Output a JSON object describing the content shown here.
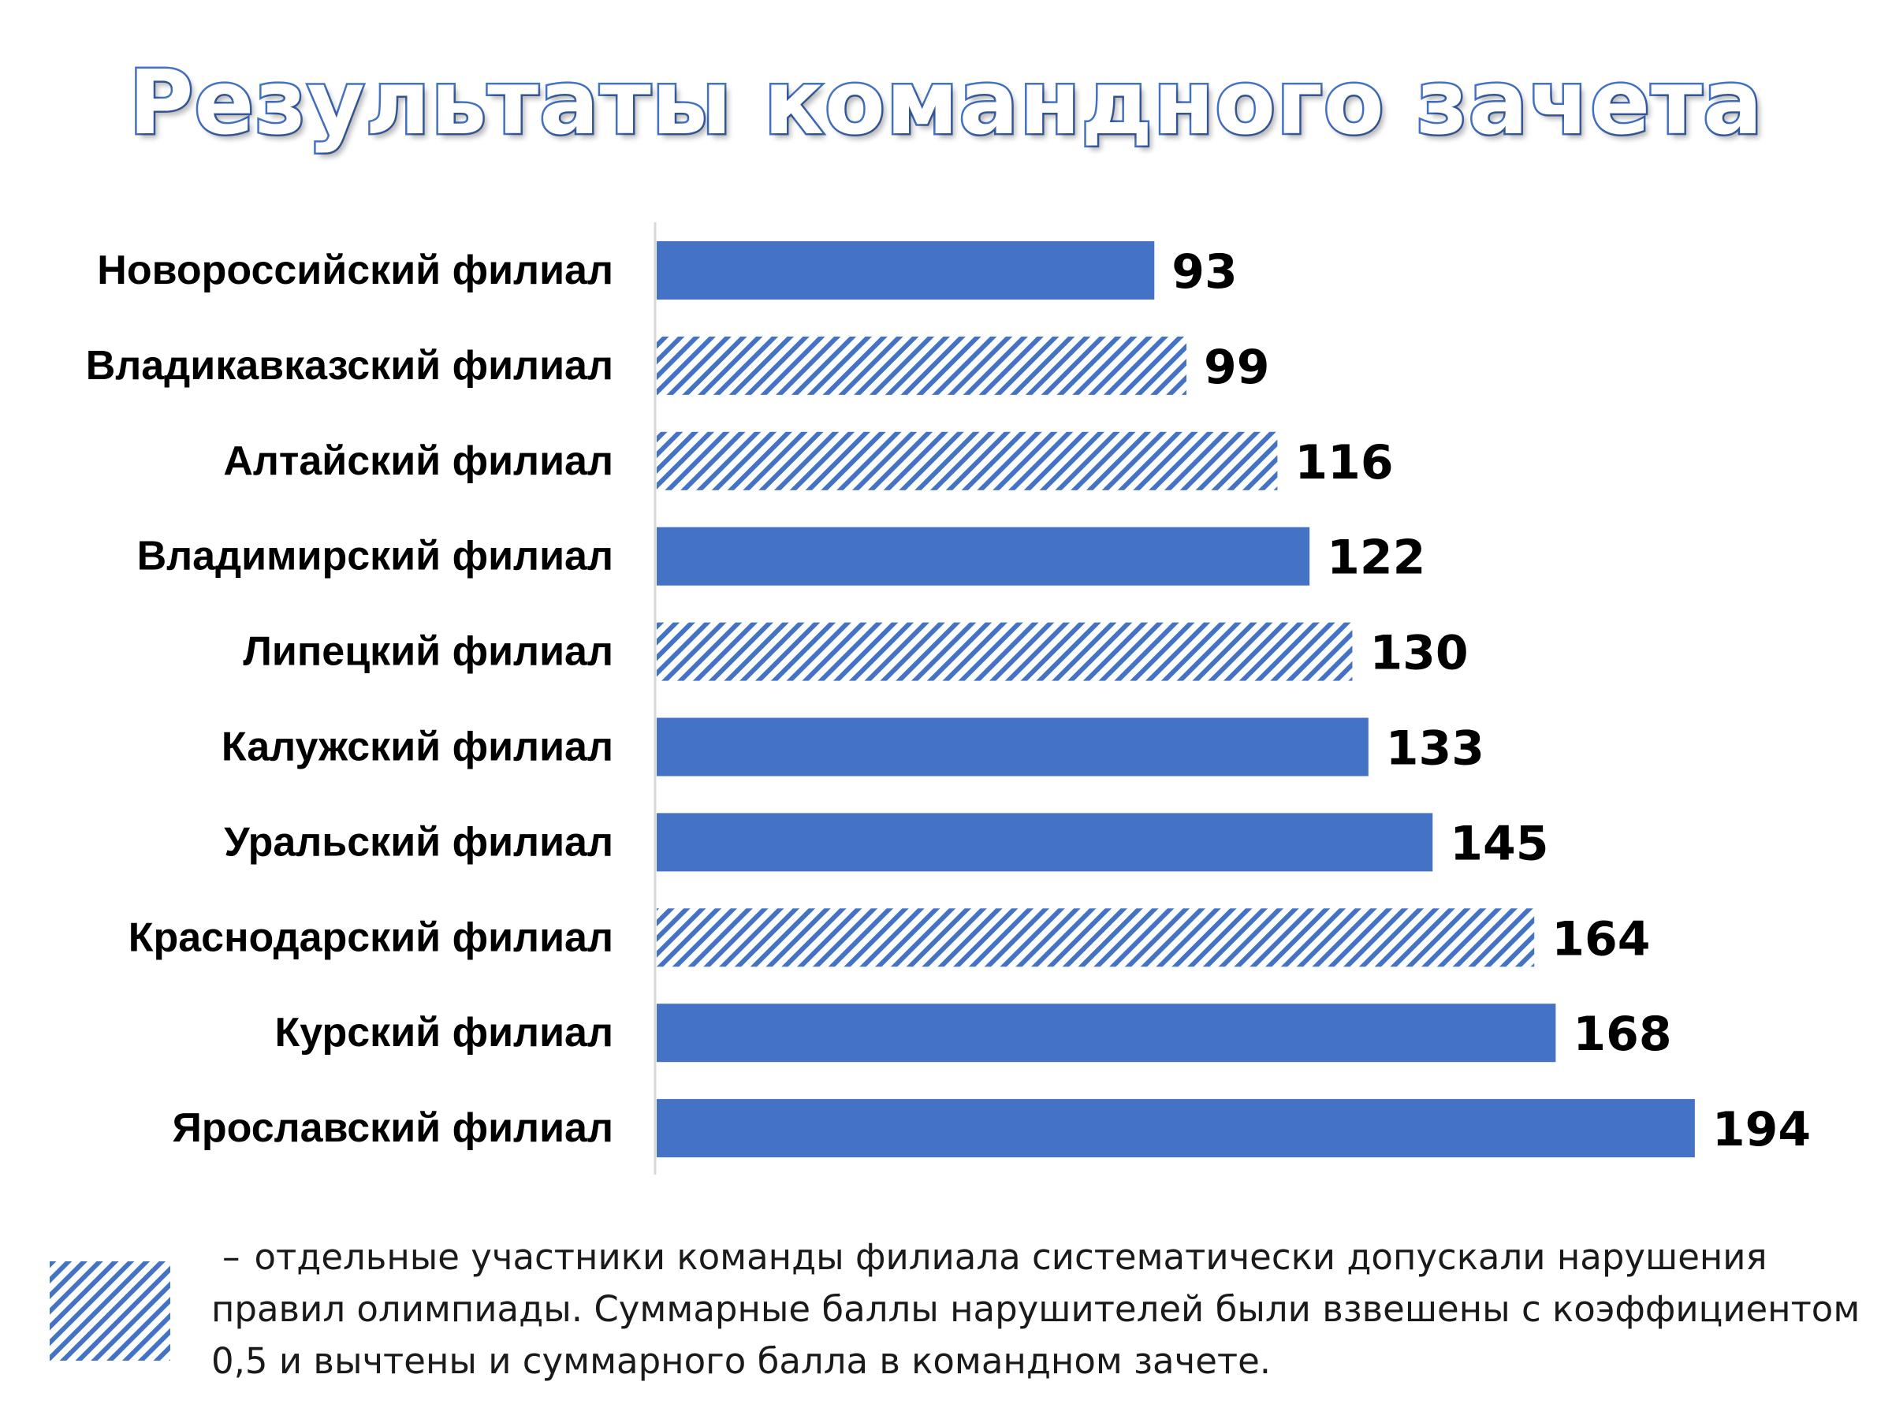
{
  "title": "Результаты командного зачета",
  "colors": {
    "bar": "#4472c4",
    "hatch_stripe": "#4472c4",
    "hatch_background": "#ffffff",
    "axis": "#d9d9d9",
    "title_outline": "#4472c4"
  },
  "chart_data": {
    "type": "bar",
    "orientation": "horizontal",
    "title": "Результаты командного зачета",
    "xlabel": "",
    "ylabel": "",
    "grid": false,
    "legend": "bottom",
    "xlim": [
      0,
      200
    ],
    "categories": [
      "Новороссийский филиал",
      "Владикавказский филиал",
      "Алтайский филиал",
      "Владимирский филиал",
      "Липецкий филиал",
      "Калужский филиал",
      "Уральский филиал",
      "Краснодарский филиал",
      "Курский филиал",
      "Ярославский филиал"
    ],
    "values": [
      93,
      99,
      116,
      122,
      130,
      133,
      145,
      164,
      168,
      194
    ],
    "hatched": [
      false,
      true,
      true,
      false,
      true,
      false,
      false,
      true,
      false,
      false
    ]
  },
  "legend": {
    "dash": "–",
    "text": "отдельные участники команды филиала систематически допускали нарушения правил олимпиады. Суммарные баллы нарушителей были взвешены с коэффициентом 0,5 и вычтены и суммарного балла в командном зачете."
  }
}
